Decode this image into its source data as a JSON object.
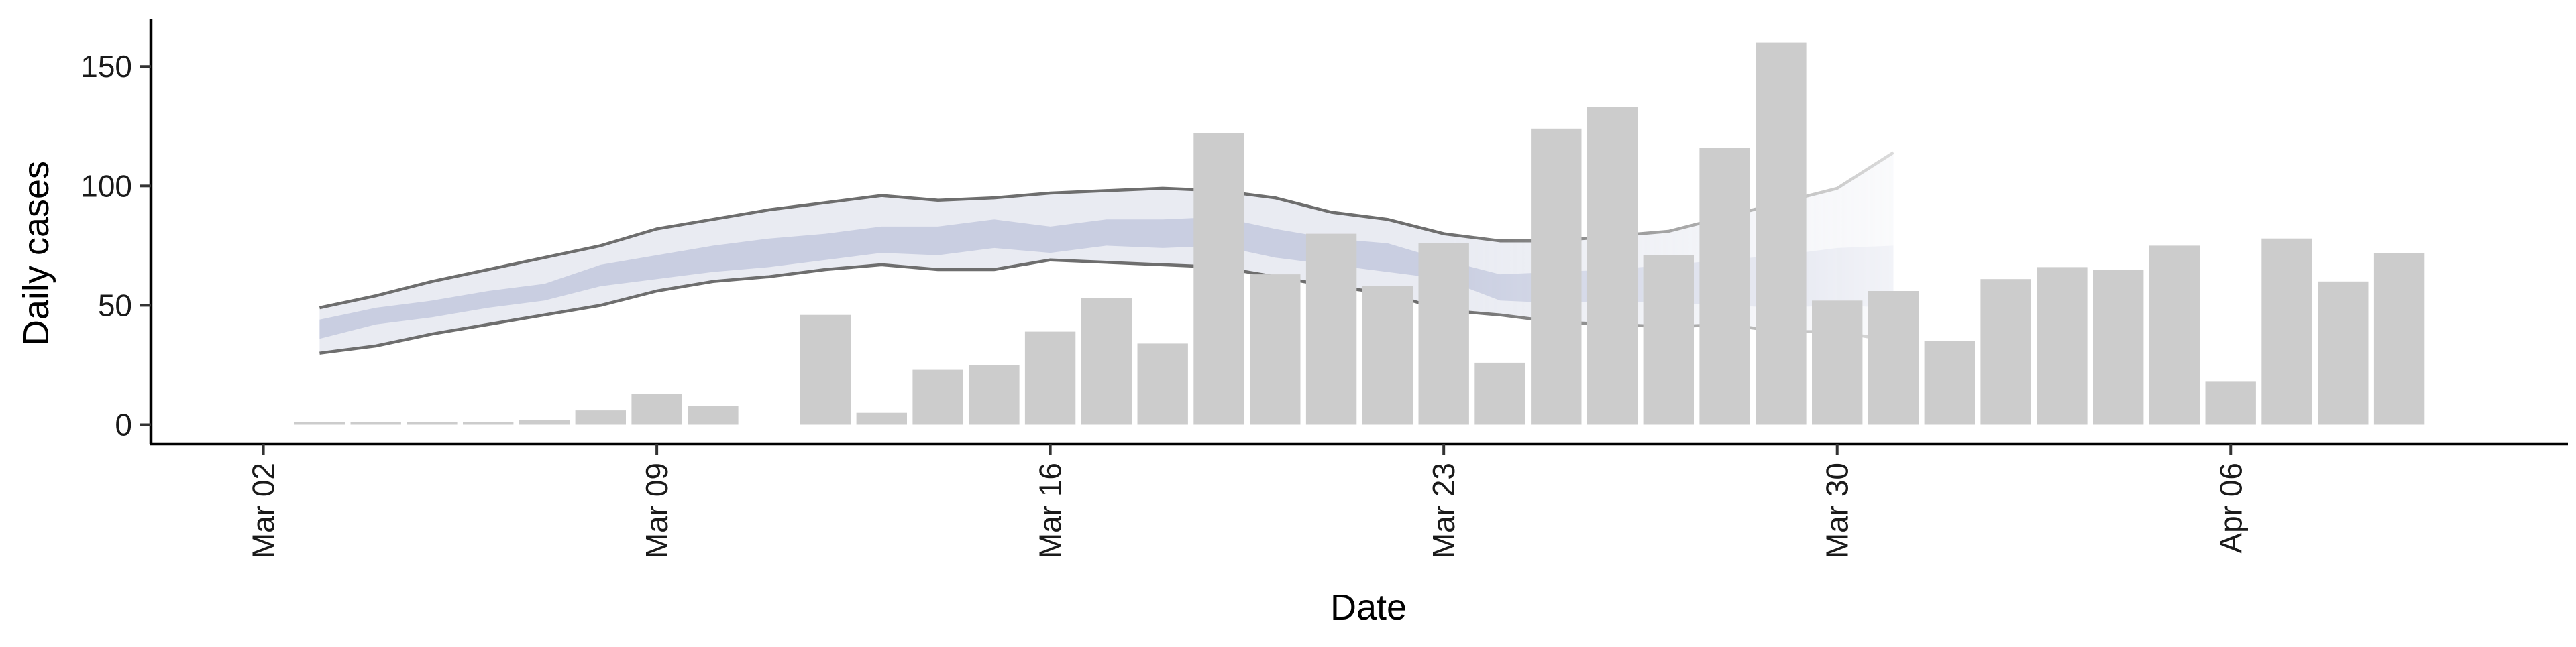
{
  "chart_data": {
    "type": "bar",
    "title": "",
    "xlabel": "Date",
    "ylabel": "Daily cases",
    "ylim": [
      -8,
      170
    ],
    "yticks": [
      0,
      50,
      100,
      150
    ],
    "ytick_labels": [
      "0",
      "50",
      "100",
      "150"
    ],
    "xlim": [
      "2020-02-29",
      "2020-04-12"
    ],
    "xticks": [
      "2020-03-02",
      "2020-03-09",
      "2020-03-16",
      "2020-03-23",
      "2020-03-30",
      "2020-04-06"
    ],
    "xtick_labels": [
      "Mar 02",
      "Mar 09",
      "Mar 16",
      "Mar 23",
      "Mar 30",
      "Apr 06"
    ],
    "grid": false,
    "bars": {
      "color": "#cccccc",
      "dates": [
        "2020-03-03",
        "2020-03-04",
        "2020-03-05",
        "2020-03-06",
        "2020-03-07",
        "2020-03-08",
        "2020-03-09",
        "2020-03-10",
        "2020-03-11",
        "2020-03-12",
        "2020-03-13",
        "2020-03-14",
        "2020-03-15",
        "2020-03-16",
        "2020-03-17",
        "2020-03-18",
        "2020-03-19",
        "2020-03-20",
        "2020-03-21",
        "2020-03-22",
        "2020-03-23",
        "2020-03-24",
        "2020-03-25",
        "2020-03-26",
        "2020-03-27",
        "2020-03-28",
        "2020-03-29",
        "2020-03-30",
        "2020-03-31",
        "2020-04-01",
        "2020-04-02",
        "2020-04-03",
        "2020-04-04",
        "2020-04-05",
        "2020-04-06",
        "2020-04-07",
        "2020-04-08",
        "2020-04-09"
      ],
      "values": [
        1,
        1,
        1,
        1,
        2,
        6,
        13,
        8,
        0,
        46,
        5,
        23,
        25,
        39,
        53,
        34,
        122,
        63,
        80,
        58,
        76,
        26,
        124,
        133,
        71,
        116,
        160,
        52,
        56,
        35,
        61,
        66,
        65,
        75,
        18,
        78,
        60,
        72
      ]
    },
    "bands": {
      "dates": [
        "2020-03-03",
        "2020-03-04",
        "2020-03-05",
        "2020-03-06",
        "2020-03-07",
        "2020-03-08",
        "2020-03-09",
        "2020-03-10",
        "2020-03-11",
        "2020-03-12",
        "2020-03-13",
        "2020-03-14",
        "2020-03-15",
        "2020-03-16",
        "2020-03-17",
        "2020-03-18",
        "2020-03-19",
        "2020-03-20",
        "2020-03-21",
        "2020-03-22",
        "2020-03-23",
        "2020-03-24",
        "2020-03-25",
        "2020-03-26",
        "2020-03-27",
        "2020-03-28",
        "2020-03-29",
        "2020-03-30",
        "2020-03-31"
      ],
      "upper_90": [
        49,
        54,
        60,
        65,
        70,
        75,
        82,
        86,
        90,
        93,
        96,
        94,
        95,
        97,
        98,
        99,
        98,
        95,
        89,
        86,
        80,
        77,
        77,
        79,
        81,
        87,
        93,
        99,
        114
      ],
      "lower_90": [
        30,
        33,
        38,
        42,
        46,
        50,
        56,
        60,
        62,
        65,
        67,
        65,
        65,
        69,
        68,
        67,
        66,
        62,
        58,
        55,
        48,
        46,
        43,
        42,
        41,
        42,
        39,
        39,
        35
      ],
      "upper_50": [
        44,
        49,
        52,
        56,
        59,
        67,
        71,
        75,
        78,
        80,
        83,
        83,
        86,
        83,
        86,
        86,
        87,
        82,
        78,
        76,
        69,
        63,
        64,
        65,
        67,
        69,
        71,
        74,
        75
      ],
      "lower_50": [
        36,
        42,
        45,
        49,
        52,
        58,
        61,
        64,
        66,
        69,
        72,
        71,
        74,
        72,
        75,
        74,
        75,
        70,
        67,
        64,
        61,
        52,
        51,
        52,
        51,
        50,
        49,
        50,
        49
      ],
      "outer_color": "#e2e4ee",
      "inner_color": "#bcc2da",
      "line_color": "#6e6e6e",
      "outer_opacity": 0.75,
      "inner_opacity": 0.7,
      "fade_from_date": "2020-03-23"
    }
  }
}
